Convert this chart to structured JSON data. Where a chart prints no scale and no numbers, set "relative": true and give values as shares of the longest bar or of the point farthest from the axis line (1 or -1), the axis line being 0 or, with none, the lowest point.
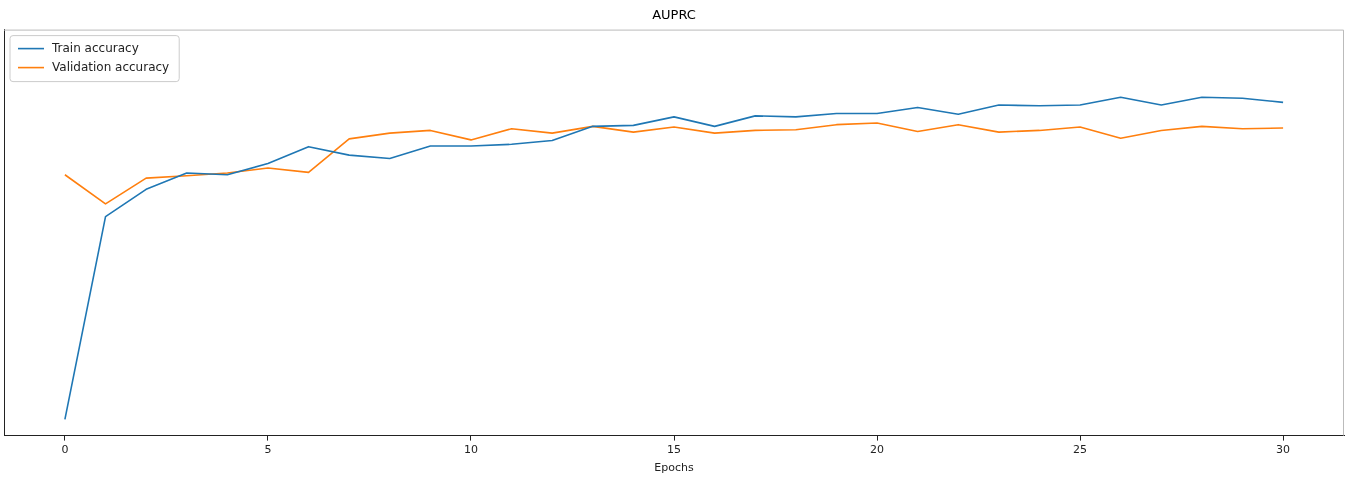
{
  "chart_data": {
    "type": "line",
    "title": "AUPRC",
    "xlabel": "Epochs",
    "relative": true,
    "x": [
      0,
      1,
      2,
      3,
      4,
      5,
      6,
      7,
      8,
      9,
      10,
      11,
      12,
      13,
      14,
      15,
      16,
      17,
      18,
      19,
      20,
      21,
      22,
      23,
      24,
      25,
      26,
      27,
      28,
      29,
      30
    ],
    "xlim": [
      -1.5,
      31.5
    ],
    "xticks": [
      0,
      5,
      10,
      15,
      20,
      25,
      30
    ],
    "series": [
      {
        "name": "Train accuracy",
        "color": "#1f77b4",
        "values": [
          0.048,
          0.647,
          0.728,
          0.776,
          0.771,
          0.804,
          0.854,
          0.829,
          0.819,
          0.856,
          0.856,
          0.861,
          0.872,
          0.914,
          0.917,
          0.942,
          0.914,
          0.945,
          0.942,
          0.952,
          0.952,
          0.97,
          0.95,
          0.977,
          0.975,
          0.977,
          1,
          0.977,
          1,
          0.997,
          0.985
        ]
      },
      {
        "name": "Validation accuracy",
        "color": "#ff7f0e",
        "values": [
          0.771,
          0.685,
          0.761,
          0.768,
          0.776,
          0.791,
          0.778,
          0.877,
          0.894,
          0.902,
          0.874,
          0.907,
          0.894,
          0.914,
          0.897,
          0.912,
          0.894,
          0.902,
          0.904,
          0.919,
          0.924,
          0.899,
          0.919,
          0.897,
          0.902,
          0.912,
          0.879,
          0.902,
          0.914,
          0.907,
          0.909
        ]
      }
    ],
    "legend": "top left",
    "grid": false,
    "marker": "none",
    "line_style": "solid"
  }
}
